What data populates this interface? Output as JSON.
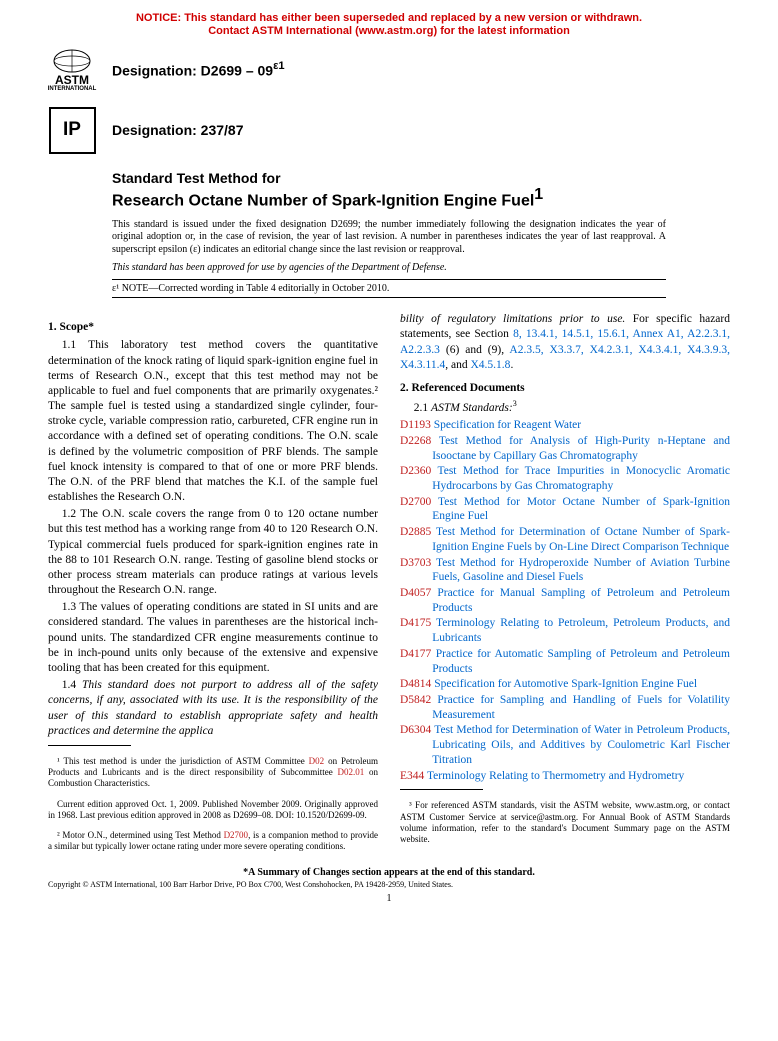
{
  "notice": {
    "line1": "NOTICE: This standard has either been superseded and replaced by a new version or withdrawn.",
    "line2": "Contact ASTM International (www.astm.org) for the latest information",
    "color": "#d00000"
  },
  "logos": {
    "astm_text": "ASTM",
    "astm_sub": "INTERNATIONAL",
    "ip_text": "IP"
  },
  "designation1": "Designation: D2699 – 09",
  "designation1_sup": "ε1",
  "designation2": "Designation: 237/87",
  "title_pre": "Standard Test Method for",
  "title": "Research Octane Number of Spark-Ignition Engine Fuel",
  "title_sup": "1",
  "meta": "This standard is issued under the fixed designation D2699; the number immediately following the designation indicates the year of original adoption or, in the case of revision, the year of last revision. A number in parentheses indicates the year of last reapproval. A superscript epsilon (ε) indicates an editorial change since the last revision or reapproval.",
  "meta_italic": "This standard has been approved for use by agencies of the Department of Defense.",
  "epsilon": "ε¹ NOTE—Corrected wording in Table 4 editorially in October 2010.",
  "scope": {
    "head": "1. Scope*",
    "p1": "1.1 This laboratory test method covers the quantitative determination of the knock rating of liquid spark-ignition engine fuel in terms of Research O.N., except that this test method may not be applicable to fuel and fuel components that are primarily oxygenates.² The sample fuel is tested using a standardized single cylinder, four-stroke cycle, variable compression ratio, carbureted, CFR engine run in accordance with a defined set of operating conditions. The O.N. scale is defined by the volumetric composition of PRF blends. The sample fuel knock intensity is compared to that of one or more PRF blends. The O.N. of the PRF blend that matches the K.I. of the sample fuel establishes the Research O.N.",
    "p2": "1.2 The O.N. scale covers the range from 0 to 120 octane number but this test method has a working range from 40 to 120 Research O.N. Typical commercial fuels produced for spark-ignition engines rate in the 88 to 101 Research O.N. range. Testing of gasoline blend stocks or other process stream materials can produce ratings at various levels throughout the Research O.N. range.",
    "p3": "1.3 The values of operating conditions are stated in SI units and are considered standard. The values in parentheses are the historical inch-pound units. The standardized CFR engine measurements continue to be in inch-pound units only because of the extensive and expensive tooling that has been created for this equipment.",
    "p4_pre": "1.4 ",
    "p4_ital": "This standard does not purport to address all of the safety concerns, if any, associated with its use. It is the responsibility of the user of this standard to establish appropriate safety and health practices and determine the applica",
    "p4_cont_ital": "bility of regulatory limitations prior to use.",
    "p4_post": " For specific hazard statements, see Section ",
    "p4_links": "8, 13.4.1, 14.5.1, 15.6.1, Annex A1, A2.2.3.1, A2.2.3.3",
    "p4_mid": " (6) and (9), ",
    "p4_links2": "A2.3.5, X3.3.7, X4.2.3.1, X4.3.4.1, X4.3.9.3, X4.3.11.4",
    "p4_and": ", and ",
    "p4_links3": "X4.5.1.8",
    "p4_end": "."
  },
  "refdocs": {
    "head": "2. Referenced Documents",
    "sub": "2.1 ",
    "sub_ital": "ASTM Standards:",
    "sub_sup": "3",
    "items": [
      {
        "num": "D1193",
        "text": "Specification for Reagent Water"
      },
      {
        "num": "D2268",
        "text": "Test Method for Analysis of High-Purity n-Heptane and Isooctane by Capillary Gas Chromatography"
      },
      {
        "num": "D2360",
        "text": "Test Method for Trace Impurities in Monocyclic Aromatic Hydrocarbons by Gas Chromatography"
      },
      {
        "num": "D2700",
        "text": "Test Method for Motor Octane Number of Spark-Ignition Engine Fuel"
      },
      {
        "num": "D2885",
        "text": "Test Method for Determination of Octane Number of Spark-Ignition Engine Fuels by On-Line Direct Comparison Technique"
      },
      {
        "num": "D3703",
        "text": "Test Method for Hydroperoxide Number of Aviation Turbine Fuels, Gasoline and Diesel Fuels"
      },
      {
        "num": "D4057",
        "text": "Practice for Manual Sampling of Petroleum and Petroleum Products"
      },
      {
        "num": "D4175",
        "text": "Terminology Relating to Petroleum, Petroleum Products, and Lubricants"
      },
      {
        "num": "D4177",
        "text": "Practice for Automatic Sampling of Petroleum and Petroleum Products"
      },
      {
        "num": "D4814",
        "text": "Specification for Automotive Spark-Ignition Engine Fuel"
      },
      {
        "num": "D5842",
        "text": "Practice for Sampling and Handling of Fuels for Volatility Measurement"
      },
      {
        "num": "D6304",
        "text": "Test Method for Determination of Water in Petroleum Products, Lubricating Oils, and Additives by Coulometric Karl Fischer Titration"
      },
      {
        "num": "E344",
        "text": "Terminology Relating to Thermometry and Hydrometry"
      }
    ]
  },
  "footnotes_left": {
    "f1_a": "¹ This test method is under the jurisdiction of ASTM Committee ",
    "f1_link1": "D02",
    "f1_b": " on Petroleum Products and Lubricants and is the direct responsibility of Subcommittee ",
    "f1_link2": "D02.01",
    "f1_c": " on Combustion Characteristics.",
    "f1d": "Current edition approved Oct. 1, 2009. Published November 2009. Originally approved in 1968. Last previous edition approved in 2008 as D2699–08. DOI: 10.1520/D2699-09.",
    "f2_a": "² Motor O.N., determined using Test Method ",
    "f2_link": "D2700",
    "f2_b": ", is a companion method to provide a similar but typically lower octane rating under more severe operating conditions."
  },
  "footnotes_right": {
    "f3": "³ For referenced ASTM standards, visit the ASTM website, www.astm.org, or contact ASTM Customer Service at service@astm.org. For Annual Book of ASTM Standards volume information, refer to the standard's Document Summary page on the ASTM website."
  },
  "summary": "*A Summary of Changes section appears at the end of this standard.",
  "copyright": "Copyright © ASTM International, 100 Barr Harbor Drive, PO Box C700, West Conshohocken, PA 19428-2959, United States.",
  "pagenum": "1",
  "colors": {
    "link": "#0066cc",
    "redlink": "#c02020"
  }
}
